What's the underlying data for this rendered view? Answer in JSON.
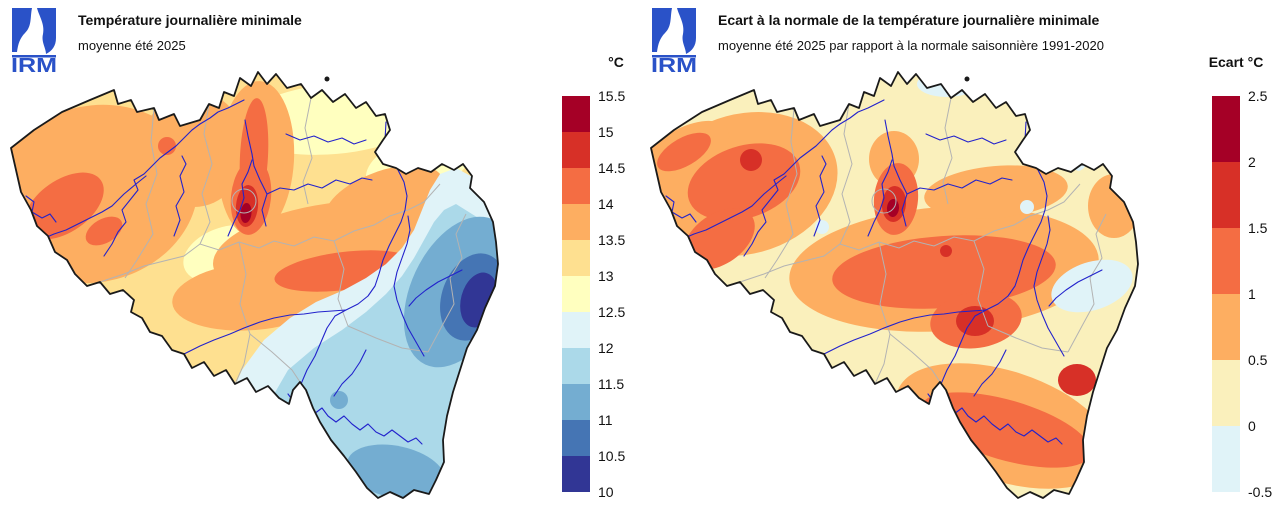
{
  "palette": {
    "scale": [
      "#a50026",
      "#d73027",
      "#f46d43",
      "#fdae61",
      "#fee090",
      "#ffffbf",
      "#e0f3f8",
      "#abd9e9",
      "#74add1",
      "#4575b4",
      "#313695"
    ],
    "pale_yellow_right": "#faf0bc",
    "river_blue": "#2222cc",
    "province_gray": "#b3b3b3",
    "border_black": "#1a1a1a",
    "logo_blue": "#2a52c8"
  },
  "logo": {
    "text": "IRM"
  },
  "panels": [
    {
      "title": "Température journalière minimale",
      "subtitle": "moyenne été 2025",
      "colorbar": {
        "unit": "°C",
        "ticks": [
          "15.5",
          "15",
          "14.5",
          "14",
          "13.5",
          "13",
          "12.5",
          "12",
          "11.5",
          "11",
          "10.5",
          "10"
        ],
        "colors": [
          "#a50026",
          "#d73027",
          "#f46d43",
          "#fdae61",
          "#fee090",
          "#ffffbf",
          "#e0f3f8",
          "#abd9e9",
          "#74add1",
          "#4575b4",
          "#313695"
        ]
      }
    },
    {
      "title": "Ecart à la normale de la température journalière minimale",
      "subtitle": "moyenne été 2025 par rapport à la normale saisonnière 1991-2020",
      "colorbar": {
        "unit": "Ecart °C",
        "ticks": [
          "2.5",
          "2",
          "1.5",
          "1",
          "0.5",
          "0",
          "-0.5"
        ],
        "colors": [
          "#a50026",
          "#d73027",
          "#f46d43",
          "#fdae61",
          "#faf0bc",
          "#e0f3f8"
        ]
      }
    }
  ],
  "chart_data": [
    {
      "type": "map",
      "title": "Température journalière minimale",
      "subtitle": "moyenne été 2025",
      "legend_title": "°C",
      "legend_ticks": [
        15.5,
        15,
        14.5,
        14,
        13.5,
        13,
        12.5,
        12,
        11.5,
        11,
        10.5,
        10
      ],
      "legend_colors": [
        "#a50026",
        "#d73027",
        "#f46d43",
        "#fdae61",
        "#fee090",
        "#ffffbf",
        "#e0f3f8",
        "#abd9e9",
        "#74add1",
        "#4575b4",
        "#313695"
      ]
    },
    {
      "type": "map",
      "title": "Ecart à la normale de la température journalière minimale",
      "subtitle": "moyenne été 2025 par rapport à la normale saisonnière 1991-2020",
      "legend_title": "Ecart °C",
      "legend_ticks": [
        2.5,
        2,
        1.5,
        1,
        0.5,
        0,
        -0.5
      ],
      "legend_colors": [
        "#a50026",
        "#d73027",
        "#f46d43",
        "#fdae61",
        "#faf0bc",
        "#e0f3f8"
      ]
    }
  ]
}
